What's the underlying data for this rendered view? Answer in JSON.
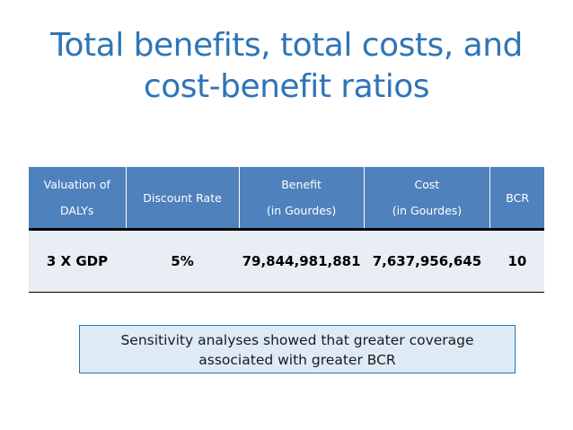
{
  "slide": {
    "title_line1": "Total benefits, total costs, and",
    "title_line2": "cost-benefit ratios"
  },
  "table": {
    "headers": [
      {
        "line1": "Valuation of",
        "line2": "DALYs"
      },
      {
        "line1": "Discount Rate",
        "line2": ""
      },
      {
        "line1": "Benefit",
        "line2": "(in Gourdes)"
      },
      {
        "line1": "Cost",
        "line2": "(in Gourdes)"
      },
      {
        "line1": "BCR",
        "line2": ""
      }
    ],
    "rows": [
      [
        "3 X GDP",
        "5%",
        "79,844,981,881",
        "7,637,956,645",
        "10"
      ]
    ]
  },
  "note": {
    "line1": "Sensitivity analyses showed that greater coverage",
    "line2": "associated with greater BCR"
  },
  "colors": {
    "title": "#2E75B6",
    "header_bg": "#4F81BD",
    "row_bg": "#E9EDF4",
    "note_bg": "#DEEBF7",
    "note_border": "#2E75B6"
  }
}
